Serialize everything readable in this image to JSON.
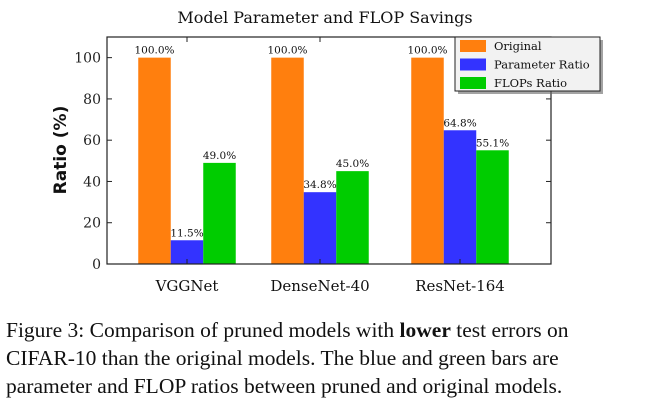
{
  "chart_data": {
    "type": "bar",
    "title": "Model Parameter and FLOP Savings",
    "xlabel": "",
    "ylabel": "Ratio (%)",
    "ylim": [
      0,
      110
    ],
    "yticks": [
      0,
      20,
      40,
      60,
      80,
      100
    ],
    "categories": [
      "VGGNet",
      "DenseNet-40",
      "ResNet-164"
    ],
    "series": [
      {
        "name": "Original",
        "color": "#ff7f0e",
        "values": [
          100.0,
          100.0,
          100.0
        ],
        "labels": [
          "100.0%",
          "100.0%",
          "100.0%"
        ]
      },
      {
        "name": "Parameter Ratio",
        "color": "#3333ff",
        "values": [
          11.5,
          34.8,
          64.8
        ],
        "labels": [
          "11.5%",
          "34.8%",
          "64.8%"
        ]
      },
      {
        "name": "FLOPs Ratio",
        "color": "#00cc00",
        "values": [
          49.0,
          45.0,
          55.1
        ],
        "labels": [
          "49.0%",
          "45.0%",
          "55.1%"
        ]
      }
    ],
    "legend": "top-right",
    "grid": false
  },
  "caption": {
    "prefix": "Figure 3: Comparison of pruned models with ",
    "bold": "lower",
    "line1_rest": " test errors on",
    "line2": "CIFAR-10 than the original models.  The blue and green bars are",
    "line3": "parameter and FLOP ratios between pruned and original models."
  }
}
